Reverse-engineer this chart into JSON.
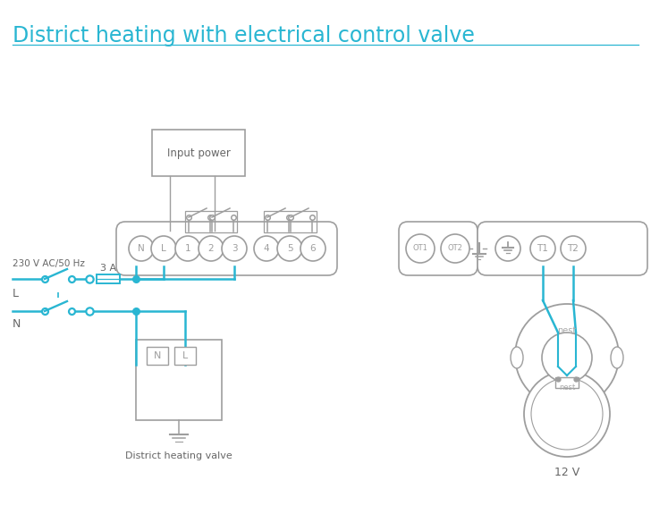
{
  "title": "District heating with electrical control valve",
  "title_color": "#29b6d2",
  "title_fontsize": 17,
  "bg_color": "#ffffff",
  "wire_color": "#29b6d2",
  "gray_color": "#9e9e9e",
  "text_gray": "#666666",
  "terminal_labels_main": [
    "N",
    "L",
    "1",
    "2",
    "3",
    "4",
    "5",
    "6"
  ],
  "terminal_labels_ot": [
    "OT1",
    "OT2"
  ],
  "terminal_labels_t": [
    "T1",
    "T2"
  ],
  "input_power_text": "Input power",
  "district_heating_text": "District heating valve",
  "voltage_text": "230 V AC/50 Hz",
  "fuse_text": "3 A",
  "L_text": "L",
  "N_text": "N",
  "twelve_v_text": "12 V",
  "nest_text": "nest"
}
